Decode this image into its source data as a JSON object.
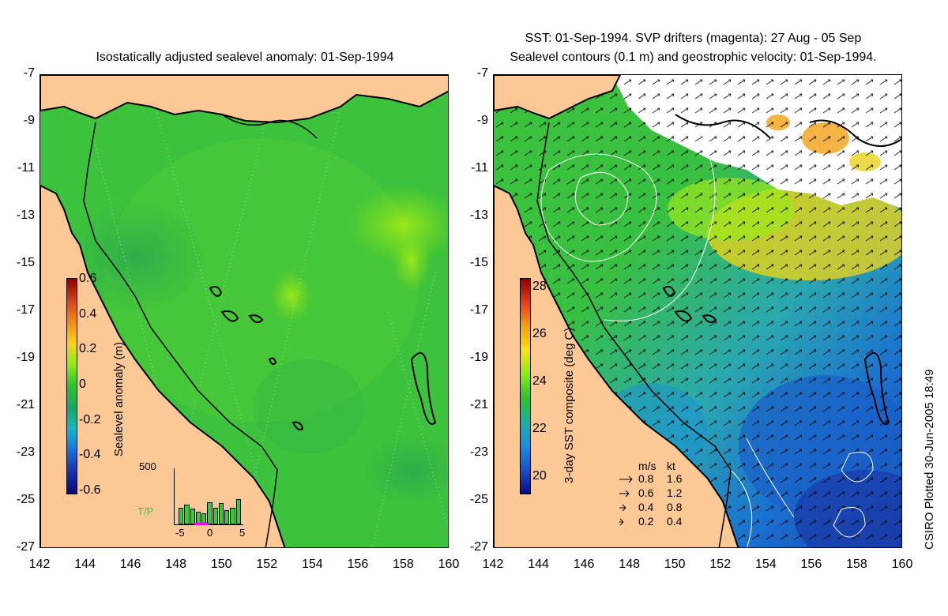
{
  "left": {
    "title": "Isostatically adjusted sealevel anomaly: 01-Sep-1994",
    "colorbar": {
      "label": "Sealevel anomaly (m)",
      "ticks": [
        "0.6",
        "0.4",
        "0.2",
        "0",
        "-0.2",
        "-0.4",
        "-0.6"
      ],
      "colors": [
        "#8b0000",
        "#d2401a",
        "#f28b14",
        "#f8d21a",
        "#8fe81a",
        "#2fc12f",
        "#1aa860",
        "#19b4c8",
        "#1a70d8",
        "#1a30a8",
        "#0a0a70"
      ]
    },
    "inset": {
      "label": "T/P",
      "ymax": "500",
      "xticks": [
        "-5",
        "0",
        "5"
      ],
      "bars": [
        0.3,
        0.35,
        0.28,
        0.22,
        0.2,
        0.4,
        0.3,
        0.38,
        0.25,
        0.3,
        0.45
      ]
    }
  },
  "right": {
    "title_line1": "SST: 01-Sep-1994. SVP drifters (magenta): 27 Aug - 05 Sep",
    "title_line2": "Sealevel contours (0.1 m) and geostrophic velocity: 01-Sep-1994.",
    "colorbar": {
      "label": "3-day SST composite (deg C)",
      "ticks": [
        "28",
        "26",
        "24",
        "22",
        "20"
      ],
      "colors": [
        "#8b0000",
        "#e0401a",
        "#f2a014",
        "#f8e01a",
        "#8fe81a",
        "#2fc12f",
        "#1ab0a0",
        "#1a90e0",
        "#1a50c8",
        "#0a0a80"
      ]
    },
    "legend": {
      "header_ms": "m/s",
      "header_kt": "kt",
      "rows": [
        {
          "ms": "0.8",
          "kt": "1.6"
        },
        {
          "ms": "0.6",
          "kt": "1.2"
        },
        {
          "ms": "0.4",
          "kt": "0.8"
        },
        {
          "ms": "0.2",
          "kt": "0.4"
        }
      ]
    }
  },
  "axes": {
    "y_ticks": [
      "-7",
      "-9",
      "-11",
      "-13",
      "-15",
      "-17",
      "-19",
      "-21",
      "-23",
      "-25",
      "-27"
    ],
    "x_ticks": [
      "142",
      "144",
      "146",
      "148",
      "150",
      "152",
      "154",
      "156",
      "158",
      "160"
    ],
    "lon_range": [
      142,
      160
    ],
    "lat_range": [
      -27,
      -7
    ]
  },
  "colors": {
    "land": "#fbc896",
    "ocean_base": "#3cc23c",
    "coast": "#000000"
  },
  "credit": "CSIRO Plotted 30-Jun-2005 18:49"
}
